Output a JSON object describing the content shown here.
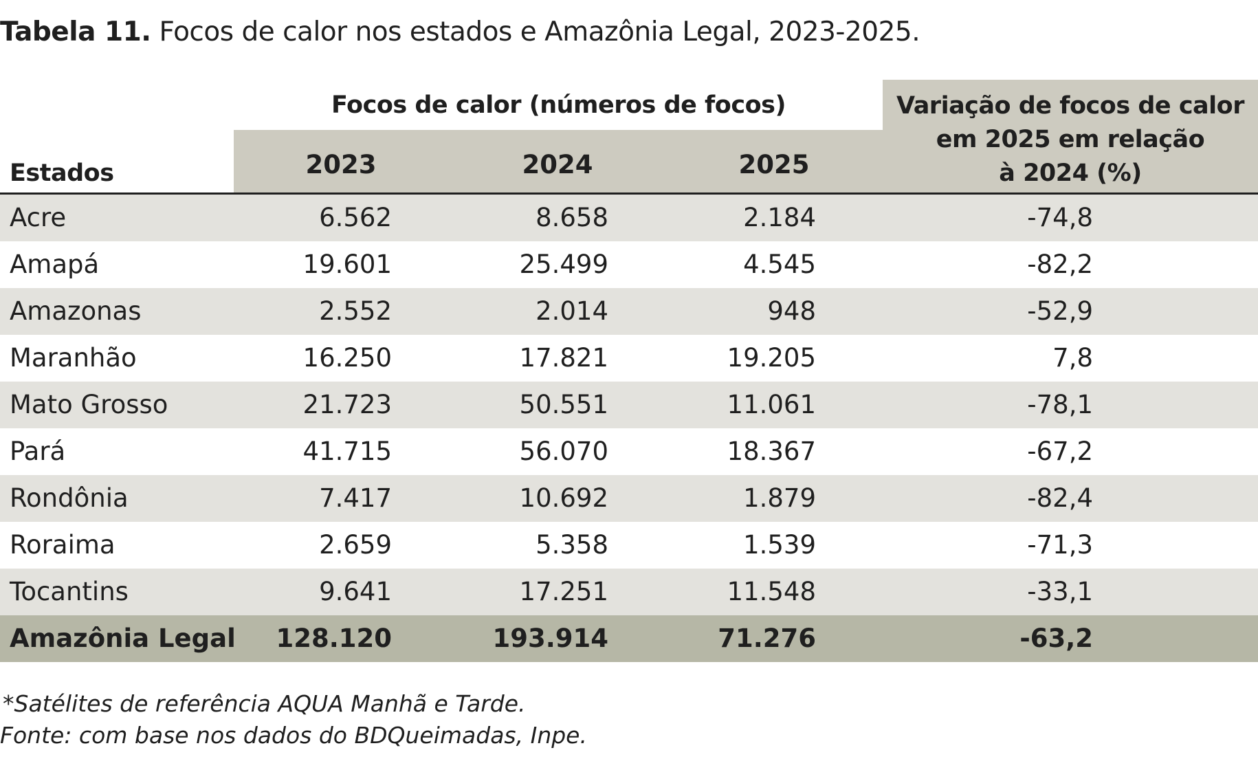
{
  "title": {
    "bold": "Tabela 11.",
    "text": "Focos de calor nos estados e Amazônia Legal, 2023-2025."
  },
  "header": {
    "estados": "Estados",
    "group": "Focos de calor (números de focos)",
    "years": [
      "2023",
      "2024",
      "2025"
    ],
    "variation": [
      "Variação de focos de calor",
      "em 2025 em relação",
      "à 2024 (%)"
    ]
  },
  "rows": [
    {
      "name": "Acre",
      "v2023": "6.562",
      "v2024": "8.658",
      "v2025": "2.184",
      "var": "-74,8"
    },
    {
      "name": "Amapá",
      "v2023": "19.601",
      "v2024": "25.499",
      "v2025": "4.545",
      "var": "-82,2"
    },
    {
      "name": "Amazonas",
      "v2023": "2.552",
      "v2024": "2.014",
      "v2025": "948",
      "var": "-52,9"
    },
    {
      "name": "Maranhão",
      "v2023": "16.250",
      "v2024": "17.821",
      "v2025": "19.205",
      "var": "7,8"
    },
    {
      "name": "Mato Grosso",
      "v2023": "21.723",
      "v2024": "50.551",
      "v2025": "11.061",
      "var": "-78,1"
    },
    {
      "name": "Pará",
      "v2023": "41.715",
      "v2024": "56.070",
      "v2025": "18.367",
      "var": "-67,2"
    },
    {
      "name": "Rondônia",
      "v2023": "7.417",
      "v2024": "10.692",
      "v2025": "1.879",
      "var": "-82,4"
    },
    {
      "name": "Roraima",
      "v2023": "2.659",
      "v2024": "5.358",
      "v2025": "1.539",
      "var": "-71,3"
    },
    {
      "name": "Tocantins",
      "v2023": "9.641",
      "v2024": "17.251",
      "v2025": "11.548",
      "var": "-33,1"
    }
  ],
  "total": {
    "name": "Amazônia Legal",
    "v2023": "128.120",
    "v2024": "193.914",
    "v2025": "71.276",
    "var": "-63,2"
  },
  "footnote": "*Satélites de referência AQUA Manhã e Tarde.",
  "source": "Fonte: com base nos dados do BDQueimadas, Inpe.",
  "colors": {
    "header_bg": "#cdcbc0",
    "row_shade": "#e3e2dd",
    "total_bg": "#b6b7a6"
  }
}
